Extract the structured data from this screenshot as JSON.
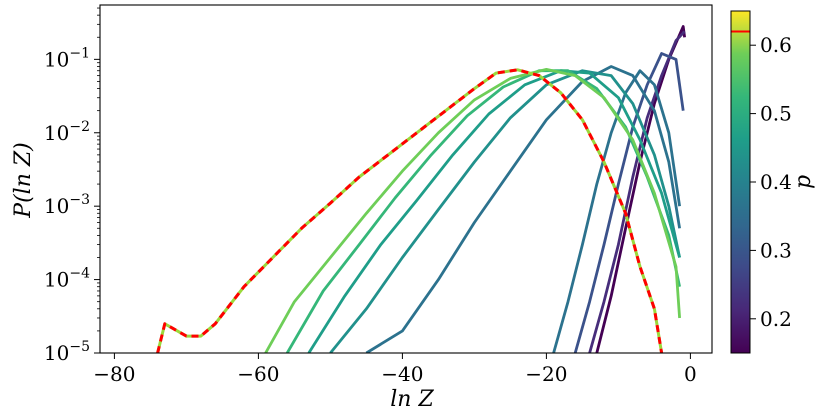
{
  "chart_data": {
    "type": "line",
    "xlabel": "ln Z",
    "ylabel": "P(ln Z)",
    "xlim": [
      -82,
      3
    ],
    "ylim": [
      1e-05,
      0.55
    ],
    "yscale": "log",
    "x_ticks": [
      -80,
      -60,
      -40,
      -20,
      0
    ],
    "x_tick_labels": [
      "−80",
      "−60",
      "−40",
      "−20",
      "0"
    ],
    "y_ticks": [
      1e-05,
      0.0001,
      0.001,
      0.01,
      0.1
    ],
    "y_tick_labels": [
      {
        "base": "10",
        "exp": "−5"
      },
      {
        "base": "10",
        "exp": "−4"
      },
      {
        "base": "10",
        "exp": "−3"
      },
      {
        "base": "10",
        "exp": "−2"
      },
      {
        "base": "10",
        "exp": "−1"
      }
    ],
    "colorbar": {
      "label": "p",
      "range": [
        0.15,
        0.65
      ],
      "ticks": [
        0.2,
        0.3,
        0.4,
        0.5,
        0.6
      ],
      "tick_labels": [
        "0.2",
        "0.3",
        "0.4",
        "0.5",
        "0.6"
      ],
      "colormap": "viridis",
      "marker_value": 0.62,
      "marker_color": "#ff0000"
    },
    "curves": [
      {
        "p": 0.18,
        "color": "#440154",
        "pts": [
          [
            -13,
            1e-05
          ],
          [
            -11,
            6e-05
          ],
          [
            -9,
            0.0005
          ],
          [
            -7,
            0.004
          ],
          [
            -5,
            0.025
          ],
          [
            -3,
            0.1
          ],
          [
            -1,
            0.28
          ],
          [
            -0.8,
            0.2
          ]
        ]
      },
      {
        "p": 0.22,
        "color": "#472d7b",
        "pts": [
          [
            -14,
            1e-05
          ],
          [
            -12,
            5e-05
          ],
          [
            -10,
            0.0003
          ],
          [
            -8,
            0.0025
          ],
          [
            -6,
            0.016
          ],
          [
            -4,
            0.06
          ],
          [
            -2,
            0.18
          ],
          [
            -0.8,
            0.24
          ]
        ]
      },
      {
        "p": 0.26,
        "color": "#3b528b",
        "pts": [
          [
            -16,
            1e-05
          ],
          [
            -14,
            5e-05
          ],
          [
            -12,
            0.0003
          ],
          [
            -10,
            0.002
          ],
          [
            -8,
            0.012
          ],
          [
            -6,
            0.045
          ],
          [
            -4,
            0.12
          ],
          [
            -2,
            0.1
          ],
          [
            -1,
            0.02
          ]
        ]
      },
      {
        "p": 0.3,
        "color": "#2c728e",
        "pts": [
          [
            -19,
            1e-05
          ],
          [
            -17,
            5e-05
          ],
          [
            -15,
            0.0003
          ],
          [
            -13,
            0.002
          ],
          [
            -11,
            0.01
          ],
          [
            -9,
            0.035
          ],
          [
            -7,
            0.07
          ],
          [
            -5,
            0.045
          ],
          [
            -3,
            0.01
          ],
          [
            -1.5,
            0.001
          ]
        ]
      },
      {
        "p": 0.34,
        "color": "#2c728e",
        "pts": [
          [
            -45,
            1e-05
          ],
          [
            -40,
            2e-05
          ],
          [
            -35,
            0.0001
          ],
          [
            -30,
            0.0006
          ],
          [
            -25,
            0.003
          ],
          [
            -20,
            0.015
          ],
          [
            -15,
            0.05
          ],
          [
            -11,
            0.08
          ],
          [
            -8,
            0.06
          ],
          [
            -5,
            0.02
          ],
          [
            -3,
            0.004
          ],
          [
            -1.5,
            0.0005
          ]
        ]
      },
      {
        "p": 0.38,
        "color": "#21918c",
        "pts": [
          [
            -50,
            1e-05
          ],
          [
            -45,
            4e-05
          ],
          [
            -40,
            0.0002
          ],
          [
            -35,
            0.0009
          ],
          [
            -30,
            0.004
          ],
          [
            -25,
            0.016
          ],
          [
            -20,
            0.045
          ],
          [
            -15,
            0.07
          ],
          [
            -11,
            0.06
          ],
          [
            -8,
            0.025
          ],
          [
            -5,
            0.005
          ],
          [
            -3,
            0.001
          ],
          [
            -1.5,
            0.0002
          ]
        ]
      },
      {
        "p": 0.42,
        "color": "#1f9e89",
        "pts": [
          [
            -53,
            1e-05
          ],
          [
            -48,
            6e-05
          ],
          [
            -43,
            0.0003
          ],
          [
            -38,
            0.0012
          ],
          [
            -33,
            0.005
          ],
          [
            -28,
            0.018
          ],
          [
            -23,
            0.045
          ],
          [
            -18,
            0.07
          ],
          [
            -14,
            0.065
          ],
          [
            -10,
            0.03
          ],
          [
            -7,
            0.008
          ],
          [
            -4,
            0.0015
          ],
          [
            -1.5,
            0.0002
          ]
        ]
      },
      {
        "p": 0.46,
        "color": "#35b779",
        "pts": [
          [
            -56,
            1e-05
          ],
          [
            -51,
            7e-05
          ],
          [
            -46,
            0.0003
          ],
          [
            -41,
            0.0013
          ],
          [
            -36,
            0.005
          ],
          [
            -31,
            0.017
          ],
          [
            -26,
            0.042
          ],
          [
            -21,
            0.07
          ],
          [
            -17,
            0.07
          ],
          [
            -13,
            0.04
          ],
          [
            -9,
            0.012
          ],
          [
            -6,
            0.0025
          ],
          [
            -3,
            0.0004
          ],
          [
            -1.5,
            8e-05
          ]
        ]
      },
      {
        "p": 0.52,
        "color": "#6ece58",
        "pts": [
          [
            -59,
            1e-05
          ],
          [
            -55,
            5e-05
          ],
          [
            -50,
            0.0002
          ],
          [
            -45,
            0.0008
          ],
          [
            -40,
            0.003
          ],
          [
            -35,
            0.01
          ],
          [
            -30,
            0.028
          ],
          [
            -25,
            0.055
          ],
          [
            -20,
            0.073
          ],
          [
            -16,
            0.06
          ],
          [
            -12,
            0.03
          ],
          [
            -8,
            0.008
          ],
          [
            -5,
            0.0015
          ],
          [
            -2,
            0.00015
          ],
          [
            -1.5,
            3e-05
          ]
        ]
      },
      {
        "p": 0.62,
        "color": "#ff0000",
        "dashed": true,
        "pts": [
          [
            -74,
            1e-05
          ],
          [
            -73,
            2.5e-05
          ],
          [
            -70,
            1.7e-05
          ],
          [
            -68,
            1.7e-05
          ],
          [
            -66,
            2.5e-05
          ],
          [
            -62,
            8e-05
          ],
          [
            -58,
            0.0002
          ],
          [
            -54,
            0.0005
          ],
          [
            -50,
            0.0011
          ],
          [
            -46,
            0.0025
          ],
          [
            -42,
            0.005
          ],
          [
            -38,
            0.01
          ],
          [
            -34,
            0.02
          ],
          [
            -30,
            0.04
          ],
          [
            -27,
            0.065
          ],
          [
            -24,
            0.072
          ],
          [
            -21,
            0.06
          ],
          [
            -18,
            0.035
          ],
          [
            -15,
            0.015
          ],
          [
            -12,
            0.004
          ],
          [
            -9,
            0.0008
          ],
          [
            -7,
            0.00015
          ],
          [
            -5,
            4e-05
          ],
          [
            -4,
            1e-05
          ]
        ]
      }
    ]
  }
}
